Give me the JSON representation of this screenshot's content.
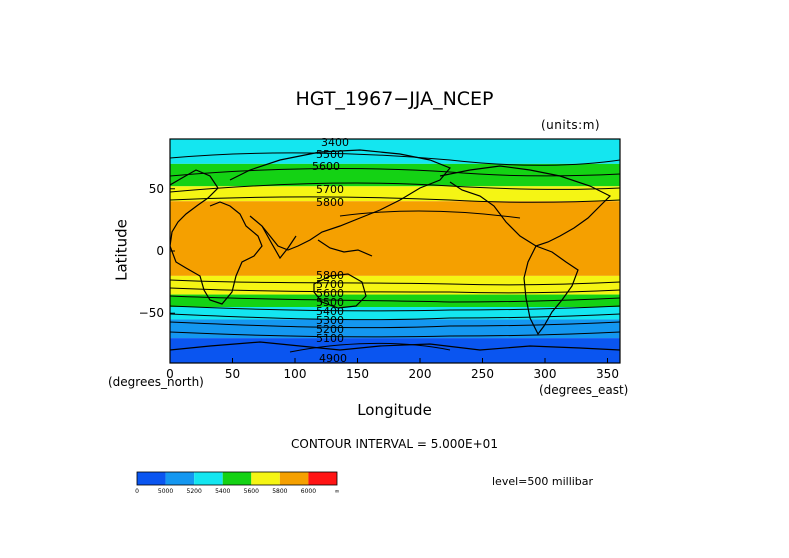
{
  "title": "HGT_1967−JJA_NCEP",
  "units_note": "(units:m)",
  "contour_interval": "CONTOUR INTERVAL = 5.000E+01",
  "level_note": "level=500 millibar",
  "chart_data": {
    "type": "heatmap",
    "title": "HGT_1967−JJA_NCEP",
    "xlabel": "Longitude",
    "ylabel": "Latitude",
    "x_units": "(degrees_east)",
    "y_units": "(degrees_north)",
    "xlim": [
      0,
      360
    ],
    "ylim": [
      -90,
      90
    ],
    "x_ticks": [
      "0",
      "50",
      "100",
      "150",
      "200",
      "250",
      "300",
      "350"
    ],
    "y_ticks": [
      "50",
      "0",
      "−50"
    ],
    "bands": [
      {
        "lat": [
          70,
          90
        ],
        "level": "<5400",
        "color": "#14e6f0"
      },
      {
        "lat": [
          52,
          70
        ],
        "level": "5400-5600",
        "color": "#14d214"
      },
      {
        "lat": [
          40,
          52
        ],
        "level": "5600-5800",
        "color": "#f5f514"
      },
      {
        "lat": [
          -20,
          40
        ],
        "level": "5800-6000",
        "color": "#f5a000"
      },
      {
        "lat": [
          -35,
          -20
        ],
        "level": "5600-5800",
        "color": "#f5f514"
      },
      {
        "lat": [
          -45,
          -35
        ],
        "level": "5400-5600",
        "color": "#14d214"
      },
      {
        "lat": [
          -55,
          -45
        ],
        "level": "5200-5400",
        "color": "#14e6f0"
      },
      {
        "lat": [
          -70,
          -55
        ],
        "level": "5000-5200",
        "color": "#1497f0"
      },
      {
        "lat": [
          -90,
          -70
        ],
        "level": "<5000",
        "color": "#0a55f0"
      }
    ],
    "contour_labels": [
      "3400",
      "5500",
      "5600",
      "5700",
      "5800",
      "5800",
      "5700",
      "5600",
      "5500",
      "5400",
      "5300",
      "5200",
      "5100",
      "4900"
    ],
    "colorbar": {
      "colors": [
        "#0a55f0",
        "#1497f0",
        "#14e6f0",
        "#14d214",
        "#f5f514",
        "#f5a000",
        "#ff1414"
      ],
      "labels": [
        "0",
        "5000",
        "5200",
        "5400",
        "5600",
        "5800",
        "6000",
        "∞"
      ]
    }
  }
}
